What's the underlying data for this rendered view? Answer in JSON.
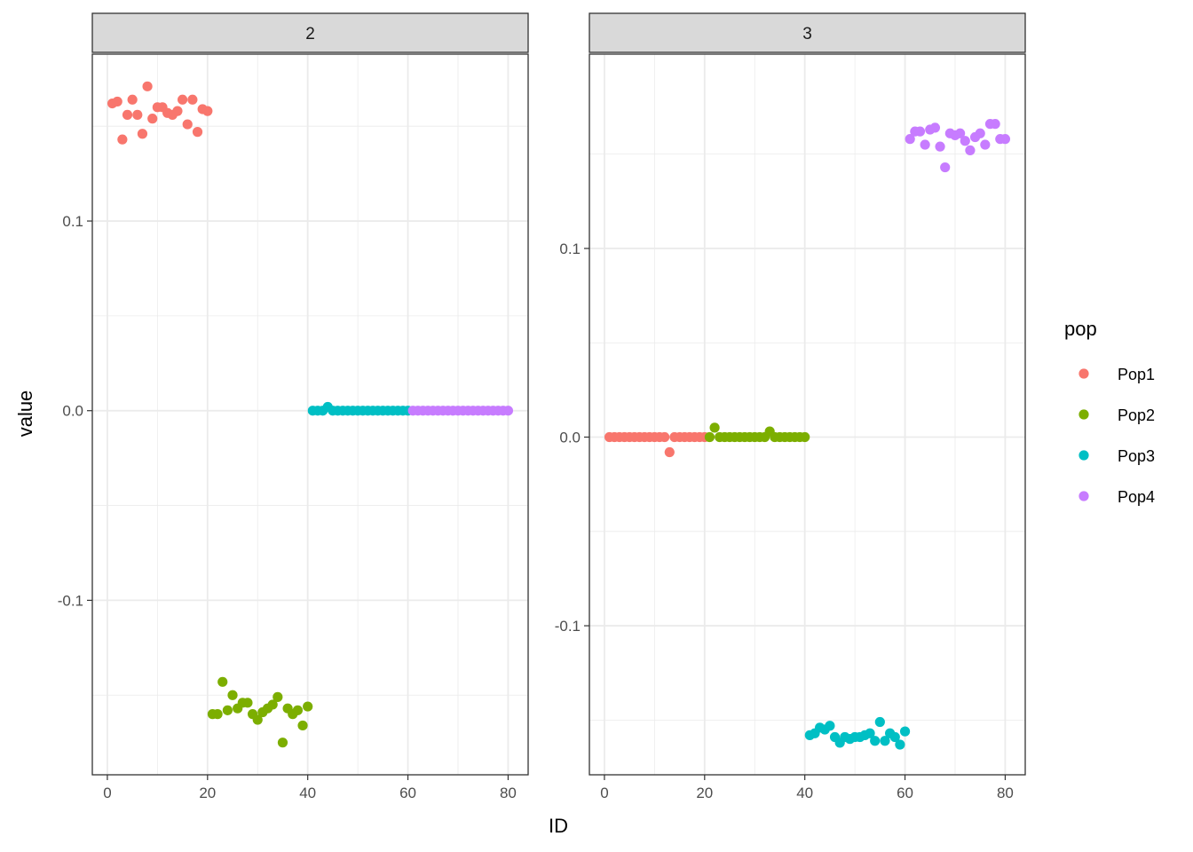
{
  "chart_data": {
    "type": "scatter",
    "xlabel": "ID",
    "ylabel": "value",
    "legend": {
      "title": "pop",
      "placement": "right",
      "entries": [
        {
          "name": "Pop1",
          "color": "#F8766D"
        },
        {
          "name": "Pop2",
          "color": "#7CAE00"
        },
        {
          "name": "Pop3",
          "color": "#00BFC4"
        },
        {
          "name": "Pop4",
          "color": "#C77CFF"
        }
      ]
    },
    "grid": true,
    "panels": [
      {
        "strip": "2",
        "xlim": [
          -3,
          84
        ],
        "ylim": [
          -0.192,
          0.188
        ],
        "xticks": [
          0,
          20,
          40,
          60,
          80
        ],
        "yticks": [
          -0.1,
          0.0,
          0.1
        ],
        "ytick_labels": [
          "-0.1",
          "0.0",
          "0.1"
        ],
        "series": [
          {
            "name": "Pop1",
            "points": [
              [
                1,
                0.162
              ],
              [
                2,
                0.163
              ],
              [
                3,
                0.143
              ],
              [
                4,
                0.156
              ],
              [
                5,
                0.164
              ],
              [
                6,
                0.156
              ],
              [
                7,
                0.146
              ],
              [
                8,
                0.171
              ],
              [
                9,
                0.154
              ],
              [
                10,
                0.16
              ],
              [
                11,
                0.16
              ],
              [
                12,
                0.157
              ],
              [
                13,
                0.156
              ],
              [
                14,
                0.158
              ],
              [
                15,
                0.164
              ],
              [
                16,
                0.151
              ],
              [
                17,
                0.164
              ],
              [
                18,
                0.147
              ],
              [
                19,
                0.159
              ],
              [
                20,
                0.158
              ]
            ]
          },
          {
            "name": "Pop2",
            "points": [
              [
                21,
                -0.16
              ],
              [
                22,
                -0.16
              ],
              [
                23,
                -0.143
              ],
              [
                24,
                -0.158
              ],
              [
                25,
                -0.15
              ],
              [
                26,
                -0.157
              ],
              [
                27,
                -0.154
              ],
              [
                28,
                -0.154
              ],
              [
                29,
                -0.16
              ],
              [
                30,
                -0.163
              ],
              [
                31,
                -0.159
              ],
              [
                32,
                -0.157
              ],
              [
                33,
                -0.155
              ],
              [
                34,
                -0.151
              ],
              [
                35,
                -0.175
              ],
              [
                36,
                -0.157
              ],
              [
                37,
                -0.16
              ],
              [
                38,
                -0.158
              ],
              [
                39,
                -0.166
              ],
              [
                40,
                -0.156
              ]
            ]
          },
          {
            "name": "Pop3",
            "points": [
              [
                41,
                0.0
              ],
              [
                42,
                0.0
              ],
              [
                43,
                0.0
              ],
              [
                44,
                0.002
              ],
              [
                45,
                0.0
              ],
              [
                46,
                0.0
              ],
              [
                47,
                0.0
              ],
              [
                48,
                0.0
              ],
              [
                49,
                0.0
              ],
              [
                50,
                0.0
              ],
              [
                51,
                0.0
              ],
              [
                52,
                0.0
              ],
              [
                53,
                0.0
              ],
              [
                54,
                0.0
              ],
              [
                55,
                0.0
              ],
              [
                56,
                0.0
              ],
              [
                57,
                0.0
              ],
              [
                58,
                0.0
              ],
              [
                59,
                0.0
              ],
              [
                60,
                0.0
              ]
            ]
          },
          {
            "name": "Pop4",
            "points": [
              [
                61,
                0.0
              ],
              [
                62,
                0.0
              ],
              [
                63,
                0.0
              ],
              [
                64,
                0.0
              ],
              [
                65,
                0.0
              ],
              [
                66,
                0.0
              ],
              [
                67,
                0.0
              ],
              [
                68,
                0.0
              ],
              [
                69,
                0.0
              ],
              [
                70,
                0.0
              ],
              [
                71,
                0.0
              ],
              [
                72,
                0.0
              ],
              [
                73,
                0.0
              ],
              [
                74,
                0.0
              ],
              [
                75,
                0.0
              ],
              [
                76,
                0.0
              ],
              [
                77,
                0.0
              ],
              [
                78,
                0.0
              ],
              [
                79,
                0.0
              ],
              [
                80,
                0.0
              ]
            ]
          }
        ]
      },
      {
        "strip": "3",
        "xlim": [
          -3,
          84
        ],
        "ylim": [
          -0.179,
          0.203
        ],
        "xticks": [
          0,
          20,
          40,
          60,
          80
        ],
        "yticks": [
          -0.1,
          0.0,
          0.1
        ],
        "ytick_labels": [
          "-0.1",
          "0.0",
          "0.1"
        ],
        "series": [
          {
            "name": "Pop1",
            "points": [
              [
                1,
                0.0
              ],
              [
                2,
                0.0
              ],
              [
                3,
                0.0
              ],
              [
                4,
                0.0
              ],
              [
                5,
                0.0
              ],
              [
                6,
                0.0
              ],
              [
                7,
                0.0
              ],
              [
                8,
                0.0
              ],
              [
                9,
                0.0
              ],
              [
                10,
                0.0
              ],
              [
                11,
                0.0
              ],
              [
                12,
                0.0
              ],
              [
                13,
                -0.008
              ],
              [
                14,
                0.0
              ],
              [
                15,
                0.0
              ],
              [
                16,
                0.0
              ],
              [
                17,
                0.0
              ],
              [
                18,
                0.0
              ],
              [
                19,
                0.0
              ],
              [
                20,
                0.0
              ]
            ]
          },
          {
            "name": "Pop2",
            "points": [
              [
                21,
                0.0
              ],
              [
                22,
                0.005
              ],
              [
                23,
                0.0
              ],
              [
                24,
                0.0
              ],
              [
                25,
                0.0
              ],
              [
                26,
                0.0
              ],
              [
                27,
                0.0
              ],
              [
                28,
                0.0
              ],
              [
                29,
                0.0
              ],
              [
                30,
                0.0
              ],
              [
                31,
                0.0
              ],
              [
                32,
                0.0
              ],
              [
                33,
                0.003
              ],
              [
                34,
                0.0
              ],
              [
                35,
                0.0
              ],
              [
                36,
                0.0
              ],
              [
                37,
                0.0
              ],
              [
                38,
                0.0
              ],
              [
                39,
                0.0
              ],
              [
                40,
                0.0
              ]
            ]
          },
          {
            "name": "Pop3",
            "points": [
              [
                41,
                -0.158
              ],
              [
                42,
                -0.157
              ],
              [
                43,
                -0.154
              ],
              [
                44,
                -0.155
              ],
              [
                45,
                -0.153
              ],
              [
                46,
                -0.159
              ],
              [
                47,
                -0.162
              ],
              [
                48,
                -0.159
              ],
              [
                49,
                -0.16
              ],
              [
                50,
                -0.159
              ],
              [
                51,
                -0.159
              ],
              [
                52,
                -0.158
              ],
              [
                53,
                -0.157
              ],
              [
                54,
                -0.161
              ],
              [
                55,
                -0.151
              ],
              [
                56,
                -0.161
              ],
              [
                57,
                -0.157
              ],
              [
                58,
                -0.159
              ],
              [
                59,
                -0.163
              ],
              [
                60,
                -0.156
              ]
            ]
          },
          {
            "name": "Pop4",
            "points": [
              [
                61,
                0.158
              ],
              [
                62,
                0.162
              ],
              [
                63,
                0.162
              ],
              [
                64,
                0.155
              ],
              [
                65,
                0.163
              ],
              [
                66,
                0.164
              ],
              [
                67,
                0.154
              ],
              [
                68,
                0.143
              ],
              [
                69,
                0.161
              ],
              [
                70,
                0.16
              ],
              [
                71,
                0.161
              ],
              [
                72,
                0.157
              ],
              [
                73,
                0.152
              ],
              [
                74,
                0.159
              ],
              [
                75,
                0.161
              ],
              [
                76,
                0.155
              ],
              [
                77,
                0.166
              ],
              [
                78,
                0.166
              ],
              [
                79,
                0.158
              ],
              [
                80,
                0.158
              ]
            ]
          }
        ]
      }
    ]
  }
}
